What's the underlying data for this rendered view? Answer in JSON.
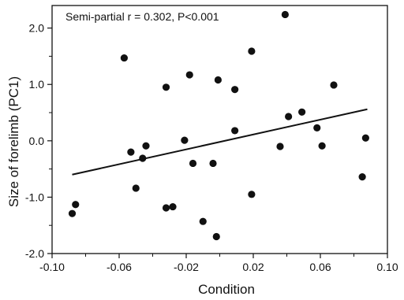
{
  "chart_data": {
    "type": "scatter",
    "xlabel": "Condition",
    "ylabel": "Size of forelimb (PC1)",
    "annotation": "Semi-partial r = 0.302, P<0.001",
    "xlim": [
      -0.1,
      0.1
    ],
    "ylim": [
      -2.0,
      2.4
    ],
    "xticks": [
      -0.1,
      -0.06,
      -0.02,
      0.02,
      0.06,
      0.1
    ],
    "xtick_labels": [
      "-0.10",
      "-0.06",
      "-0.02",
      "0.02",
      "0.06",
      "0.10"
    ],
    "yticks": [
      -2.0,
      -1.0,
      0.0,
      1.0,
      2.0
    ],
    "ytick_labels": [
      "-2.0",
      "-1.0",
      "0.0",
      "1.0",
      "2.0"
    ],
    "grid": false,
    "points": [
      {
        "x": -0.088,
        "y": -1.29
      },
      {
        "x": -0.086,
        "y": -1.13
      },
      {
        "x": -0.057,
        "y": 1.47
      },
      {
        "x": -0.053,
        "y": -0.2
      },
      {
        "x": -0.05,
        "y": -0.84
      },
      {
        "x": -0.046,
        "y": -0.31
      },
      {
        "x": -0.044,
        "y": -0.09
      },
      {
        "x": -0.032,
        "y": 0.95
      },
      {
        "x": -0.032,
        "y": -1.19
      },
      {
        "x": -0.028,
        "y": -1.17
      },
      {
        "x": -0.021,
        "y": 0.01
      },
      {
        "x": -0.018,
        "y": 1.17
      },
      {
        "x": -0.016,
        "y": -0.4
      },
      {
        "x": -0.01,
        "y": -1.43
      },
      {
        "x": -0.004,
        "y": -0.4
      },
      {
        "x": -0.002,
        "y": -1.7
      },
      {
        "x": -0.001,
        "y": 1.08
      },
      {
        "x": 0.009,
        "y": 0.91
      },
      {
        "x": 0.009,
        "y": 0.18
      },
      {
        "x": 0.019,
        "y": 1.59
      },
      {
        "x": 0.019,
        "y": -0.95
      },
      {
        "x": 0.036,
        "y": -0.1
      },
      {
        "x": 0.039,
        "y": 2.24
      },
      {
        "x": 0.041,
        "y": 0.43
      },
      {
        "x": 0.049,
        "y": 0.51
      },
      {
        "x": 0.058,
        "y": 0.23
      },
      {
        "x": 0.061,
        "y": -0.09
      },
      {
        "x": 0.068,
        "y": 0.99
      },
      {
        "x": 0.085,
        "y": -0.64
      },
      {
        "x": 0.087,
        "y": 0.05
      }
    ],
    "fit_line": {
      "x": [
        -0.088,
        0.088
      ],
      "y": [
        -0.6,
        0.56
      ]
    },
    "colors": {
      "marker": "#111111",
      "line": "#111111",
      "axis": "#111111"
    }
  }
}
